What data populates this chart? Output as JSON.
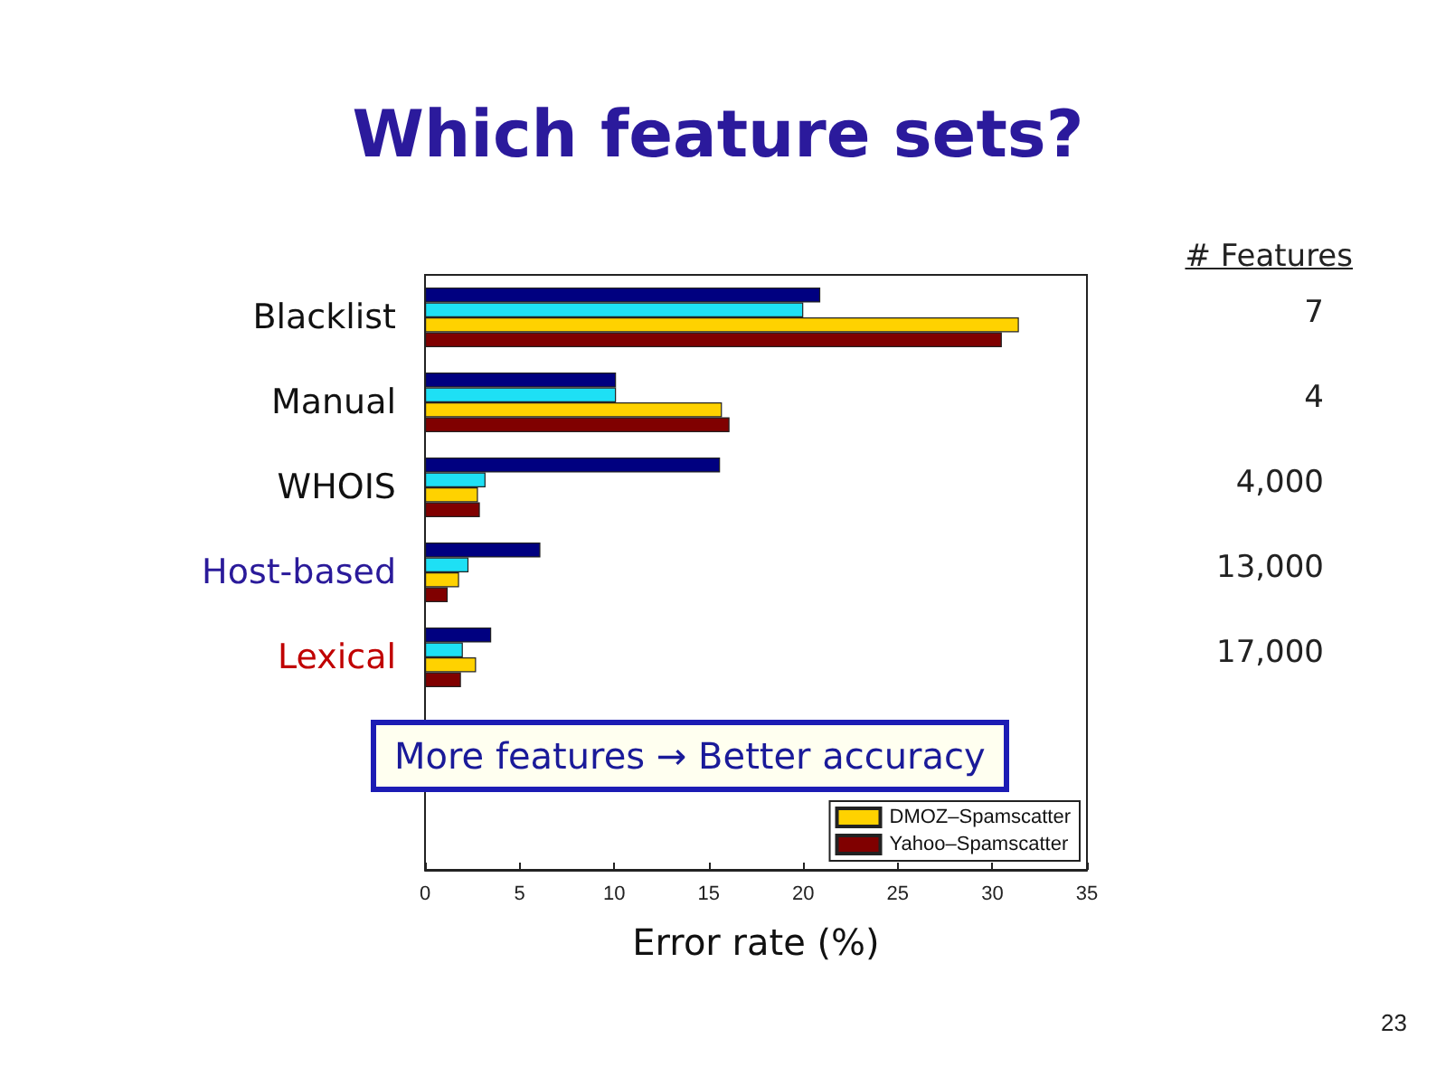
{
  "chart_data": {
    "type": "bar",
    "orientation": "horizontal",
    "title": "Which feature sets?",
    "xlabel": "Error rate (%)",
    "categories": [
      "Blacklist",
      "Manual",
      "WHOIS",
      "Host-based",
      "Lexical",
      null,
      null
    ],
    "series": [
      {
        "color": "#000080",
        "values": [
          20.9,
          10.1,
          15.6,
          6.1,
          3.5,
          null,
          null
        ]
      },
      {
        "color": "#1ee0f5",
        "values": [
          20.0,
          10.1,
          3.2,
          2.3,
          2.0,
          null,
          null
        ]
      },
      {
        "name": "DMOZ–Spamscatter",
        "color": "#ffd200",
        "values": [
          31.4,
          15.7,
          2.8,
          1.8,
          2.7,
          null,
          null
        ]
      },
      {
        "name": "Yahoo–Spamscatter",
        "color": "#800000",
        "values": [
          30.5,
          16.1,
          2.9,
          1.2,
          1.9,
          null,
          null
        ]
      }
    ],
    "xlim": [
      0,
      35
    ],
    "xticks": [
      0,
      5,
      10,
      15,
      20,
      25,
      30,
      35
    ],
    "legend": "bottom right",
    "annotations": [
      "# Features",
      "7",
      "4",
      "4,000",
      "13,000",
      "17,000",
      "More features → Better accuracy",
      "23"
    ]
  }
}
